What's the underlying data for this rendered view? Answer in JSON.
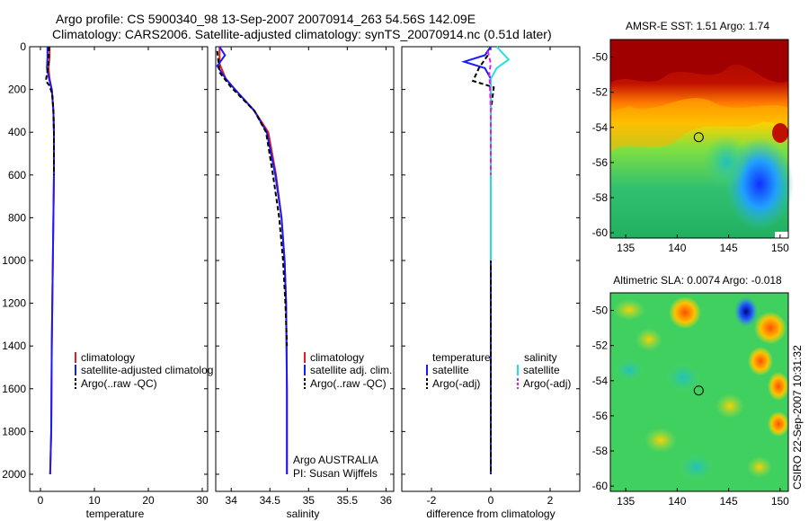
{
  "figure": {
    "title_line1": "Argo profile: CS 5900340_98 13-Sep-2007 20070914_263 54.56S 142.09E",
    "title_line2": "Climatology: CARS2006. Satellite-adjusted climatology: synTS_20070914.nc (0.51d later)",
    "side_label": "CSIRO 22-Sep-2007 10:31:32"
  },
  "colors": {
    "climatology": "#e02020",
    "satellite": "#1a1aff",
    "argo": "#000000",
    "satellite_salinity": "#22e0e0",
    "argo_salinity_diff": "#e020e0"
  },
  "chart_data": [
    {
      "type": "line",
      "name": "temperature-profile",
      "xlabel": "temperature",
      "ylabel": "",
      "xlim": [
        -2,
        31
      ],
      "ylim": [
        2080,
        0
      ],
      "xticks": [
        0,
        10,
        20,
        30
      ],
      "yticks": [
        0,
        200,
        400,
        600,
        800,
        1000,
        1200,
        1400,
        1600,
        1800,
        2000
      ],
      "legend": [
        "climatology",
        "satellite-adjusted climatolog",
        "Argo(..raw -QC)"
      ],
      "series": [
        {
          "name": "climatology",
          "color_key": "climatology",
          "dash": false,
          "points": [
            [
              1.7,
              0
            ],
            [
              1.7,
              50
            ],
            [
              1.5,
              100
            ],
            [
              1.7,
              150
            ],
            [
              2.1,
              200
            ],
            [
              2.4,
              300
            ],
            [
              2.5,
              400
            ],
            [
              2.5,
              600
            ],
            [
              2.4,
              800
            ],
            [
              2.3,
              1000
            ],
            [
              2.1,
              1400
            ],
            [
              2.0,
              1800
            ],
            [
              1.8,
              2000
            ]
          ]
        },
        {
          "name": "satellite-adjusted climatology",
          "color_key": "satellite",
          "dash": false,
          "points": [
            [
              1.3,
              0
            ],
            [
              1.3,
              50
            ],
            [
              1.2,
              100
            ],
            [
              1.6,
              150
            ],
            [
              2.1,
              200
            ],
            [
              2.4,
              300
            ],
            [
              2.5,
              400
            ],
            [
              2.5,
              600
            ],
            [
              2.4,
              800
            ],
            [
              2.3,
              1000
            ],
            [
              2.1,
              1400
            ],
            [
              2.0,
              1800
            ],
            [
              1.8,
              2000
            ]
          ]
        },
        {
          "name": "Argo(..raw -QC)",
          "color_key": "argo",
          "dash": true,
          "points": [
            [
              1.6,
              0
            ],
            [
              1.5,
              80
            ],
            [
              1.0,
              160
            ],
            [
              1.6,
              180
            ],
            [
              2.2,
              220
            ],
            [
              2.4,
              300
            ],
            [
              2.5,
              400
            ],
            [
              2.5,
              600
            ]
          ]
        }
      ]
    },
    {
      "type": "line",
      "name": "salinity-profile",
      "xlabel": "salinity",
      "ylabel": "",
      "xlim": [
        33.8,
        36.1
      ],
      "ylim": [
        2080,
        0
      ],
      "xticks": [
        34,
        34.5,
        35,
        35.5,
        36
      ],
      "legend": [
        "climatology",
        "satellite adj. clim.",
        "Argo(..raw -QC)"
      ],
      "annotations": [
        "Argo AUSTRALIA",
        "PI: Susan Wijffels"
      ],
      "series": [
        {
          "name": "climatology",
          "color_key": "climatology",
          "dash": false,
          "points": [
            [
              33.85,
              0
            ],
            [
              33.85,
              80
            ],
            [
              33.93,
              150
            ],
            [
              34.05,
              200
            ],
            [
              34.3,
              300
            ],
            [
              34.48,
              400
            ],
            [
              34.58,
              600
            ],
            [
              34.65,
              800
            ],
            [
              34.69,
              1000
            ],
            [
              34.71,
              1200
            ],
            [
              34.72,
              1600
            ],
            [
              34.72,
              2000
            ]
          ]
        },
        {
          "name": "satellite adj. clim.",
          "color_key": "satellite",
          "dash": false,
          "points": [
            [
              33.85,
              0
            ],
            [
              33.92,
              40
            ],
            [
              33.82,
              90
            ],
            [
              33.93,
              150
            ],
            [
              34.05,
              200
            ],
            [
              34.3,
              300
            ],
            [
              34.46,
              400
            ],
            [
              34.57,
              600
            ],
            [
              34.65,
              800
            ],
            [
              34.69,
              1000
            ],
            [
              34.71,
              1200
            ],
            [
              34.72,
              1600
            ],
            [
              34.72,
              2000
            ]
          ]
        },
        {
          "name": "Argo(..raw -QC)",
          "color_key": "argo",
          "dash": true,
          "points": [
            [
              33.82,
              20
            ],
            [
              33.85,
              120
            ],
            [
              34.0,
              190
            ],
            [
              34.3,
              300
            ],
            [
              34.45,
              400
            ],
            [
              34.54,
              600
            ],
            [
              34.62,
              800
            ],
            [
              34.67,
              1000
            ],
            [
              34.7,
              1200
            ],
            [
              34.72,
              1400
            ]
          ]
        }
      ]
    },
    {
      "type": "line",
      "name": "difference-profile",
      "xlabel": "difference from climatology",
      "ylabel": "",
      "xlim": [
        -3,
        3
      ],
      "ylim": [
        2080,
        0
      ],
      "xticks": [
        -2,
        0,
        2
      ],
      "legend": {
        "temperature_header": "temperature",
        "salinity_header": "salinity",
        "temperature_items": [
          "satellite",
          "Argo(-adj)"
        ],
        "salinity_items": [
          "satellite",
          "Argo(-adj)"
        ]
      },
      "series": [
        {
          "name": "temperature satellite",
          "color_key": "satellite",
          "dash": false,
          "points": [
            [
              0,
              0
            ],
            [
              -0.2,
              40
            ],
            [
              -0.9,
              70
            ],
            [
              -0.2,
              100
            ],
            [
              0,
              150
            ],
            [
              0,
              400
            ],
            [
              0,
              1000
            ],
            [
              0,
              2000
            ]
          ]
        },
        {
          "name": "temperature Argo(-adj)",
          "color_key": "argo",
          "dash": true,
          "points": [
            [
              -0.1,
              40
            ],
            [
              -0.4,
              100
            ],
            [
              -0.6,
              160
            ],
            [
              0.1,
              190
            ],
            [
              0,
              300
            ],
            [
              0,
              600
            ],
            [
              0,
              1000
            ],
            [
              0,
              2000
            ]
          ]
        },
        {
          "name": "salinity satellite",
          "color_key": "satellite_salinity",
          "dash": false,
          "points": [
            [
              0.2,
              0
            ],
            [
              0.6,
              60
            ],
            [
              0.2,
              100
            ],
            [
              0,
              150
            ],
            [
              0,
              400
            ],
            [
              0,
              1000
            ]
          ]
        },
        {
          "name": "salinity Argo(-adj)",
          "color_key": "argo_salinity_diff",
          "dash": true,
          "points": [
            [
              -0.1,
              20
            ],
            [
              0,
              80
            ],
            [
              -0.05,
              120
            ],
            [
              0,
              300
            ],
            [
              0,
              600
            ]
          ]
        }
      ]
    },
    {
      "type": "heatmap",
      "name": "sst-map",
      "title": "AMSR-E SST: 1.51 Argo: 1.74",
      "xlim": [
        133.5,
        150.8
      ],
      "ylim": [
        -60.3,
        -49
      ],
      "xticks": [
        135,
        140,
        145,
        150
      ],
      "yticks": [
        -50,
        -52,
        -54,
        -56,
        -58,
        -60
      ],
      "marker": {
        "lon": 142.09,
        "lat": -54.56
      }
    },
    {
      "type": "heatmap",
      "name": "sla-map",
      "title": "Altimetric SLA: 0.0074 Argo: -0.018",
      "xlim": [
        133.5,
        150.8
      ],
      "ylim": [
        -60.3,
        -49
      ],
      "xticks": [
        135,
        140,
        145,
        150
      ],
      "yticks": [
        -50,
        -52,
        -54,
        -56,
        -58,
        -60
      ],
      "marker": {
        "lon": 142.09,
        "lat": -54.56
      }
    }
  ]
}
